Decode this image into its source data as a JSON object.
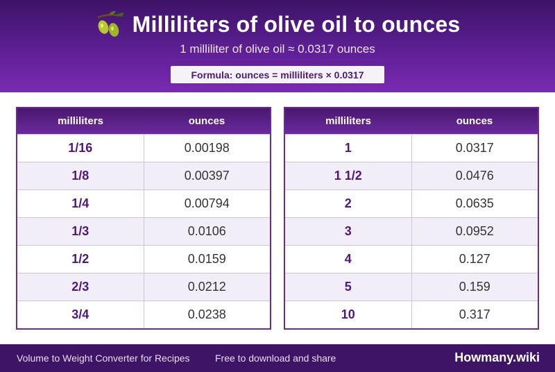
{
  "header": {
    "title": "Milliliters of olive oil to ounces",
    "subtitle": "1 milliliter of olive oil ≈ 0.0317 ounces",
    "formula": "Formula: ounces = milliliters × 0.0317",
    "icon": "olive-icon"
  },
  "columns": {
    "left": "milliliters",
    "right": "ounces"
  },
  "tables": [
    {
      "rows": [
        {
          "ml": "1/16",
          "oz": "0.00198"
        },
        {
          "ml": "1/8",
          "oz": "0.00397"
        },
        {
          "ml": "1/4",
          "oz": "0.00794"
        },
        {
          "ml": "1/3",
          "oz": "0.0106"
        },
        {
          "ml": "1/2",
          "oz": "0.0159"
        },
        {
          "ml": "2/3",
          "oz": "0.0212"
        },
        {
          "ml": "3/4",
          "oz": "0.0238"
        }
      ]
    },
    {
      "rows": [
        {
          "ml": "1",
          "oz": "0.0317"
        },
        {
          "ml": "1 1/2",
          "oz": "0.0476"
        },
        {
          "ml": "2",
          "oz": "0.0635"
        },
        {
          "ml": "3",
          "oz": "0.0952"
        },
        {
          "ml": "4",
          "oz": "0.127"
        },
        {
          "ml": "5",
          "oz": "0.159"
        },
        {
          "ml": "10",
          "oz": "0.317"
        }
      ]
    }
  ],
  "footer": {
    "left": "Volume to Weight Converter for Recipes",
    "mid": "Free to download and share",
    "brand": "Howmany.wiki"
  },
  "colors": {
    "header_dark": "#3d1466",
    "header_light": "#7a2bb0",
    "accent": "#4e1680",
    "footer": "#3e1466"
  }
}
